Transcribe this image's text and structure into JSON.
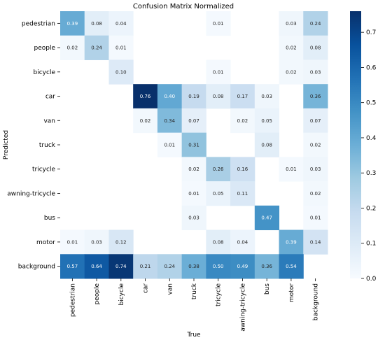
{
  "chart_data": {
    "type": "heatmap",
    "title": "Confusion Matrix Normalized",
    "xlabel": "True",
    "ylabel": "Predicted",
    "x_categories": [
      "pedestrian",
      "people",
      "bicycle",
      "car",
      "van",
      "truck",
      "tricycle",
      "awning-tricycle",
      "bus",
      "motor",
      "background"
    ],
    "y_categories": [
      "pedestrian",
      "people",
      "bicycle",
      "car",
      "van",
      "truck",
      "tricycle",
      "awning-tricycle",
      "bus",
      "motor",
      "background"
    ],
    "values": [
      [
        0.39,
        0.08,
        0.04,
        null,
        null,
        null,
        0.01,
        null,
        null,
        0.03,
        0.24
      ],
      [
        0.02,
        0.24,
        0.01,
        null,
        null,
        null,
        null,
        null,
        null,
        0.02,
        0.08
      ],
      [
        null,
        null,
        0.1,
        null,
        null,
        null,
        0.01,
        null,
        null,
        0.02,
        0.03
      ],
      [
        null,
        null,
        null,
        0.76,
        0.4,
        0.19,
        0.08,
        0.17,
        0.03,
        null,
        0.36
      ],
      [
        null,
        null,
        null,
        0.02,
        0.34,
        0.07,
        null,
        0.02,
        0.05,
        null,
        0.07
      ],
      [
        null,
        null,
        null,
        null,
        0.01,
        0.31,
        null,
        null,
        0.08,
        null,
        0.02
      ],
      [
        null,
        null,
        null,
        null,
        null,
        0.02,
        0.26,
        0.16,
        null,
        0.01,
        0.03
      ],
      [
        null,
        null,
        null,
        null,
        null,
        0.01,
        0.05,
        0.11,
        null,
        null,
        0.02
      ],
      [
        null,
        null,
        null,
        null,
        null,
        0.03,
        null,
        null,
        0.47,
        null,
        0.01
      ],
      [
        0.01,
        0.03,
        0.12,
        null,
        null,
        null,
        0.08,
        0.04,
        null,
        0.39,
        0.14
      ],
      [
        0.57,
        0.64,
        0.74,
        0.21,
        0.24,
        0.38,
        0.5,
        0.49,
        0.36,
        0.54,
        null
      ]
    ],
    "colorbar": {
      "min": 0.0,
      "max": 0.76,
      "ticks": [
        "0.0",
        "0.1",
        "0.2",
        "0.3",
        "0.4",
        "0.5",
        "0.6",
        "0.7"
      ],
      "colormap": "Blues"
    }
  }
}
